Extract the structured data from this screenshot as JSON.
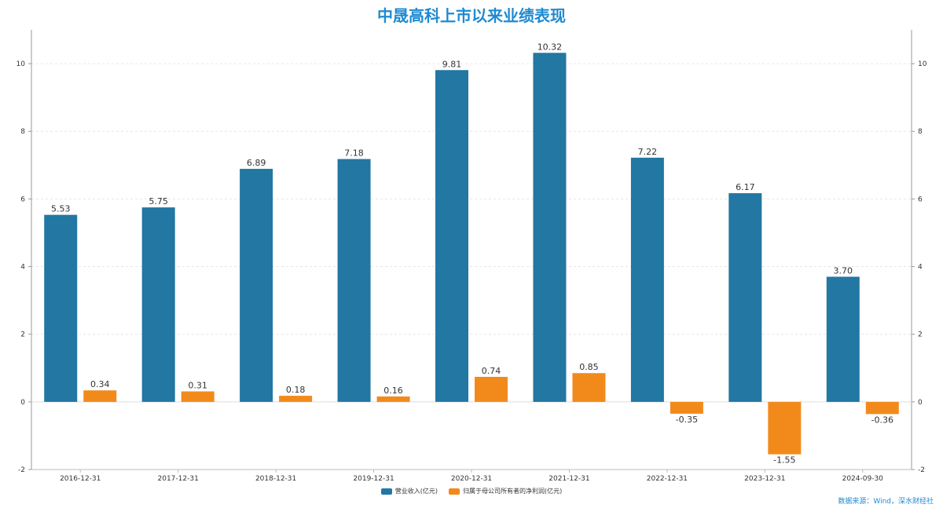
{
  "chart_data": {
    "type": "bar",
    "title": "中晟高科上市以来业绩表现",
    "categories": [
      "2016-12-31",
      "2017-12-31",
      "2018-12-31",
      "2019-12-31",
      "2020-12-31",
      "2021-12-31",
      "2022-12-31",
      "2023-12-31",
      "2024-09-30"
    ],
    "series": [
      {
        "name": "营业收入(亿元)",
        "values": [
          5.53,
          5.75,
          6.89,
          7.18,
          9.81,
          10.32,
          7.22,
          6.17,
          3.7
        ],
        "labels": [
          "5.53",
          "5.75",
          "6.89",
          "7.18",
          "9.81",
          "10.32",
          "7.22",
          "6.17",
          "3.70"
        ],
        "color": "#2277a3"
      },
      {
        "name": "归属于母公司所有者的净利润(亿元)",
        "values": [
          0.34,
          0.31,
          0.18,
          0.16,
          0.74,
          0.85,
          -0.35,
          -1.55,
          -0.36
        ],
        "labels": [
          "0.34",
          "0.31",
          "0.18",
          "0.16",
          "0.74",
          "0.85",
          "-0.35",
          "-1.55",
          "-0.36"
        ],
        "color": "#f28a1b"
      }
    ],
    "ylim": [
      -2,
      11
    ],
    "yticks": [
      -2,
      0,
      2,
      4,
      6,
      8,
      10
    ],
    "ytick_labels": [
      "-2",
      "0",
      "2",
      "4",
      "6",
      "8",
      "10"
    ],
    "secondary_axis": true,
    "grid": true,
    "legend": "bottom-center",
    "xlabel": "",
    "ylabel": ""
  },
  "source": "数据来源：Wind，深水财经社"
}
